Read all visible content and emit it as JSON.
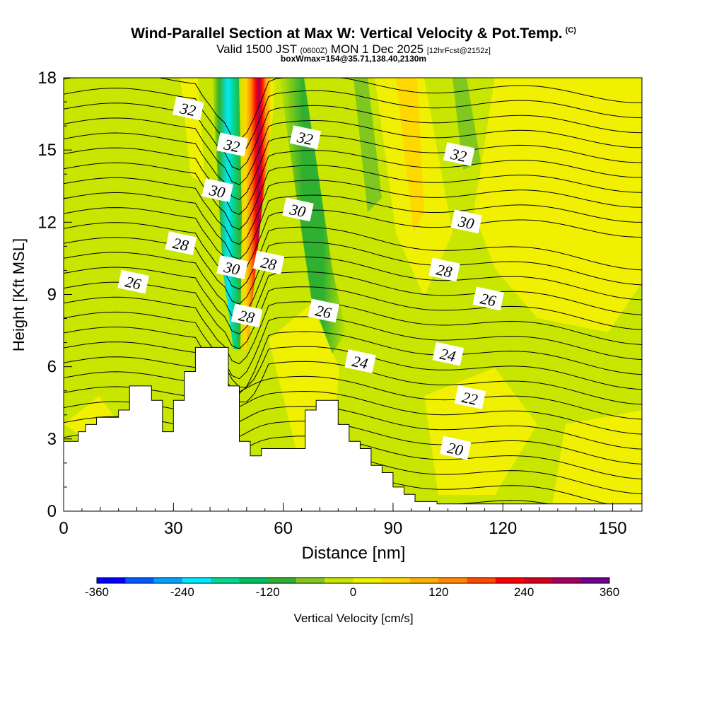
{
  "header": {
    "title": "Wind-Parallel Section at Max W: Vertical Velocity & Pot.Temp.",
    "copyright": "(C)",
    "valid_main": "Valid 1500 JST",
    "valid_utc": "(0600Z)",
    "valid_date": "MON 1 Dec 2025",
    "valid_fcst": "[12hrFcst@2152z]",
    "box_info": "boxWmax=154@35.71,138.40,2130m"
  },
  "chart_data": {
    "type": "heatmap",
    "title": "Wind-Parallel Section at Max W: Vertical Velocity & Pot.Temp.",
    "xlabel": "Distance [nm]",
    "ylabel": "Height [Kft MSL]",
    "xlim": [
      0,
      158
    ],
    "ylim": [
      0,
      18
    ],
    "x_ticks": [
      "0",
      "30",
      "60",
      "90",
      "120",
      "150"
    ],
    "x_tick_values": [
      0,
      30,
      60,
      90,
      120,
      150
    ],
    "y_ticks": [
      "0",
      "3",
      "6",
      "9",
      "12",
      "15",
      "18"
    ],
    "y_tick_values": [
      0,
      3,
      6,
      9,
      12,
      15,
      18
    ],
    "colorbar": {
      "label": "Vertical Velocity [cm/s]",
      "tick_labels": [
        "-360",
        "-240",
        "-120",
        "0",
        "120",
        "240",
        "360"
      ],
      "tick_values": [
        -360,
        -240,
        -120,
        0,
        120,
        240,
        360
      ],
      "colors": [
        "#0000ff",
        "#005aff",
        "#00a0ff",
        "#00eaff",
        "#00d890",
        "#00c060",
        "#30b030",
        "#80c820",
        "#c8e600",
        "#f0f000",
        "#ffd800",
        "#ffb000",
        "#ff8800",
        "#ff4800",
        "#ff0000",
        "#d00020",
        "#a00060",
        "#700090"
      ]
    },
    "contour_labels": [
      {
        "text": "32",
        "x": 34,
        "y": 16.7
      },
      {
        "text": "32",
        "x": 66,
        "y": 15.5
      },
      {
        "text": "32",
        "x": 108,
        "y": 14.8
      },
      {
        "text": "32",
        "x": 46,
        "y": 15.2
      },
      {
        "text": "30",
        "x": 42,
        "y": 13.3
      },
      {
        "text": "30",
        "x": 64,
        "y": 12.5
      },
      {
        "text": "30",
        "x": 110,
        "y": 12.0
      },
      {
        "text": "30",
        "x": 46,
        "y": 10.1
      },
      {
        "text": "28",
        "x": 32,
        "y": 11.1
      },
      {
        "text": "28",
        "x": 56,
        "y": 10.3
      },
      {
        "text": "28",
        "x": 104,
        "y": 10.0
      },
      {
        "text": "28",
        "x": 50,
        "y": 8.1
      },
      {
        "text": "26",
        "x": 19,
        "y": 9.5
      },
      {
        "text": "26",
        "x": 71,
        "y": 8.3
      },
      {
        "text": "26",
        "x": 116,
        "y": 8.8
      },
      {
        "text": "24",
        "x": 81,
        "y": 6.2
      },
      {
        "text": "24",
        "x": 105,
        "y": 6.5
      },
      {
        "text": "22",
        "x": 111,
        "y": 4.7
      },
      {
        "text": "20",
        "x": 107,
        "y": 2.6
      }
    ],
    "terrain": [
      [
        0,
        2.9
      ],
      [
        4,
        2.9
      ],
      [
        4,
        3.3
      ],
      [
        6,
        3.3
      ],
      [
        6,
        3.6
      ],
      [
        9,
        3.6
      ],
      [
        9,
        3.9
      ],
      [
        15,
        3.9
      ],
      [
        15,
        4.2
      ],
      [
        18,
        4.2
      ],
      [
        18,
        5.2
      ],
      [
        24,
        5.2
      ],
      [
        24,
        4.6
      ],
      [
        27,
        4.6
      ],
      [
        27,
        3.3
      ],
      [
        30,
        3.3
      ],
      [
        30,
        4.6
      ],
      [
        33,
        4.6
      ],
      [
        33,
        5.8
      ],
      [
        36,
        5.8
      ],
      [
        36,
        6.8
      ],
      [
        45,
        6.8
      ],
      [
        45,
        5.2
      ],
      [
        48,
        5.2
      ],
      [
        48,
        2.9
      ],
      [
        51,
        2.9
      ],
      [
        51,
        2.3
      ],
      [
        54,
        2.3
      ],
      [
        54,
        2.6
      ],
      [
        66,
        2.6
      ],
      [
        66,
        4.2
      ],
      [
        69,
        4.2
      ],
      [
        69,
        4.6
      ],
      [
        75,
        4.6
      ],
      [
        75,
        3.6
      ],
      [
        78,
        3.6
      ],
      [
        78,
        2.9
      ],
      [
        81,
        2.9
      ],
      [
        81,
        2.6
      ],
      [
        84,
        2.6
      ],
      [
        84,
        1.9
      ],
      [
        87,
        1.9
      ],
      [
        87,
        1.6
      ],
      [
        90,
        1.6
      ],
      [
        90,
        1.0
      ],
      [
        93,
        1.0
      ],
      [
        93,
        0.7
      ],
      [
        96,
        0.7
      ],
      [
        96,
        0.4
      ],
      [
        102,
        0.4
      ],
      [
        102,
        0.3
      ],
      [
        158,
        0.3
      ]
    ],
    "velocity_features": [
      {
        "name": "updraft-core",
        "center_x": 51,
        "value_max": 360,
        "height_range": [
          6.8,
          18
        ]
      },
      {
        "name": "downdraft-band",
        "center_x": 45,
        "value_min": -270,
        "height_range": [
          7,
          18
        ]
      }
    ]
  }
}
